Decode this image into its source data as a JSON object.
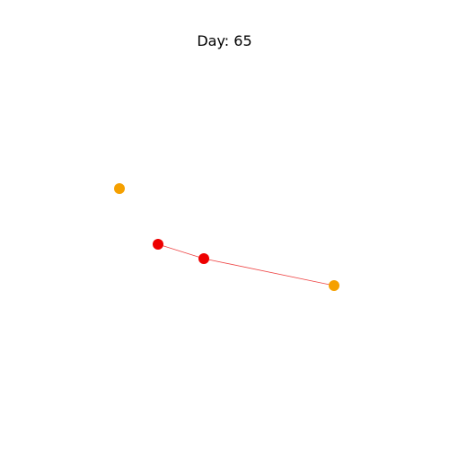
{
  "title": "Day: 65",
  "graph": {
    "nodes": [
      {
        "id": "n1",
        "color": "#f5a000"
      },
      {
        "id": "n2",
        "color": "#ee0000"
      },
      {
        "id": "n3",
        "color": "#ee0000"
      },
      {
        "id": "n4",
        "color": "#f5a000"
      }
    ],
    "edges": [
      {
        "from": "n2",
        "to": "n3",
        "color": "#ee4444"
      },
      {
        "from": "n3",
        "to": "n4",
        "color": "#ee4444"
      }
    ]
  }
}
